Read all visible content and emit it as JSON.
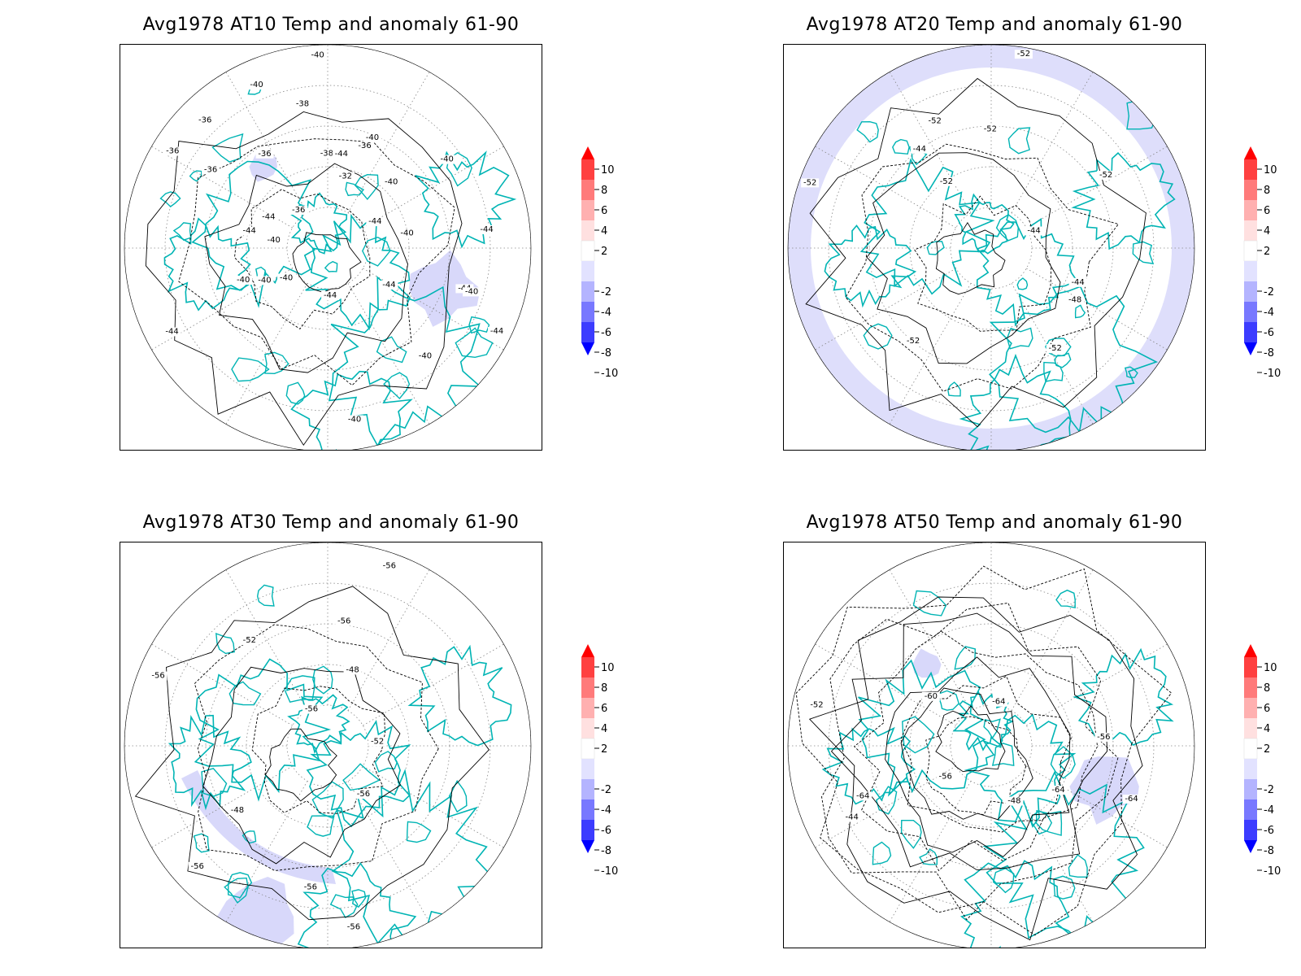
{
  "panels": [
    {
      "title": "Avg1978 AT10 Temp and anomaly 61-90",
      "contour_labels": [
        "-44",
        "-40",
        "-36",
        "-36",
        "-40",
        "-40",
        "-44",
        "-40",
        "-44",
        "-44",
        "-36",
        "-38",
        "-36",
        "-36",
        "-38",
        "-40",
        "-32",
        "-36",
        "-40",
        "-40",
        "-44",
        "-44",
        "-40",
        "-40",
        "-44",
        "-40",
        "-44",
        "-44",
        "-44",
        "-40",
        "-40",
        "-40"
      ],
      "anomaly_style": "weak"
    },
    {
      "title": "Avg1978 AT20 Temp and anomaly 61-90",
      "contour_labels": [
        "-52",
        "-52",
        "-52",
        "-44",
        "-44",
        "-44",
        "-52",
        "-48",
        "-52",
        "-52",
        "-52",
        "-52"
      ],
      "anomaly_style": "ring"
    },
    {
      "title": "Avg1978 AT30 Temp and anomaly 61-90",
      "contour_labels": [
        "-56",
        "-56",
        "-52",
        "-48",
        "-56",
        "-56",
        "-56",
        "-48",
        "-52",
        "-56",
        "-56",
        "-56"
      ],
      "anomaly_style": "arc"
    },
    {
      "title": "Avg1978 AT50 Temp and anomaly 61-90",
      "contour_labels": [
        "-56",
        "-64",
        "-64",
        "-44",
        "-48",
        "-52",
        "-56",
        "-60",
        "-64",
        "-64"
      ],
      "anomaly_style": "weak"
    }
  ],
  "colorbar": {
    "labels": [
      "10",
      "8",
      "6",
      "4",
      "2",
      "-2",
      "-4",
      "-6",
      "-8",
      "-10"
    ],
    "colors": [
      "#ff0000",
      "#ff4040",
      "#ff7a7a",
      "#ffb0b0",
      "#ffe0e0",
      "#ffffff",
      "#e2e2ff",
      "#b4b4ff",
      "#7878ff",
      "#3c3cff",
      "#0000ff"
    ]
  },
  "colors": {
    "coastline": "#00b4b4",
    "anomaly_negative": "#d8d8fa",
    "contour": "#000000",
    "grid": "#888888"
  }
}
